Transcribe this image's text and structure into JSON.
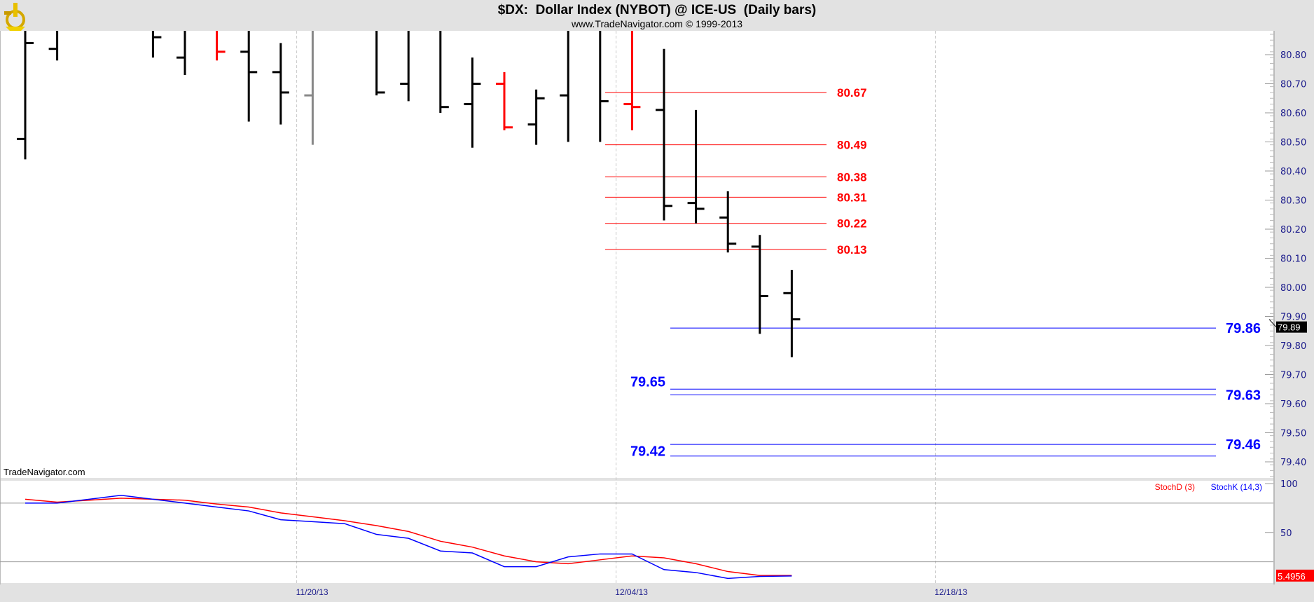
{
  "chart_data": {
    "type": "ohlc-bar",
    "title": "$DX:  Dollar Index (NYBOT) @ ICE-US  (Daily bars)",
    "subtitle": "www.TradeNavigator.com © 1999-2013",
    "watermark": "TradeNavigator.com",
    "ylim": [
      79.35,
      80.9
    ],
    "yticks": [
      "80.80",
      "80.70",
      "80.60",
      "80.50",
      "80.40",
      "80.30",
      "80.20",
      "80.10",
      "80.00",
      "79.90",
      "79.80",
      "79.70",
      "79.60",
      "79.50",
      "79.40"
    ],
    "xtick_labels": [
      {
        "label": "11/20/13",
        "date": "11/20/13"
      },
      {
        "label": "12/04/13",
        "date": "12/04/13"
      },
      {
        "label": "12/18/13",
        "date": "12/18/13"
      }
    ],
    "trading_days": [
      "11/07/13",
      "11/08/13",
      "11/11/13",
      "11/12/13",
      "11/13/13",
      "11/14/13",
      "11/15/13",
      "11/18/13",
      "11/19/13",
      "11/20/13",
      "11/21/13",
      "11/22/13",
      "11/25/13",
      "11/26/13",
      "11/27/13",
      "11/28/13",
      "11/29/13",
      "12/02/13",
      "12/03/13",
      "12/04/13",
      "12/05/13",
      "12/06/13",
      "12/09/13",
      "12/10/13",
      "12/11/13",
      "12/12/13",
      "12/13/13",
      "12/16/13",
      "12/17/13",
      "12/18/13",
      "12/19/13",
      "12/20/13",
      "12/23/13",
      "12/24/13",
      "12/26/13",
      "12/27/13",
      "12/30/13",
      "12/31/13",
      "01/02/14",
      "01/03/14"
    ],
    "bars": [
      {
        "date": "11/07/13",
        "o": 80.51,
        "h": 80.9,
        "l": 80.44,
        "c": 80.84,
        "color": "#000000"
      },
      {
        "date": "11/08/13",
        "o": 80.82,
        "h": 80.9,
        "l": 80.78,
        "c": null,
        "color": "#000000"
      },
      {
        "date": "11/13/13",
        "o": null,
        "h": 80.9,
        "l": 80.79,
        "c": 80.86,
        "color": "#000000"
      },
      {
        "date": "11/14/13",
        "o": 80.79,
        "h": 80.9,
        "l": 80.73,
        "c": null,
        "color": "#000000"
      },
      {
        "date": "11/15/13",
        "o": null,
        "h": 80.9,
        "l": 80.78,
        "c": 80.81,
        "color": "#ff0000"
      },
      {
        "date": "11/18/13",
        "o": 80.81,
        "h": 80.9,
        "l": 80.57,
        "c": 80.74,
        "color": "#000000"
      },
      {
        "date": "11/19/13",
        "o": 80.74,
        "h": 80.84,
        "l": 80.56,
        "c": 80.67,
        "color": "#000000"
      },
      {
        "date": "11/20/13",
        "o": 80.66,
        "h": 80.9,
        "l": 80.49,
        "c": null,
        "color": "#888888"
      },
      {
        "date": "11/22/13",
        "o": null,
        "h": 80.9,
        "l": 80.66,
        "c": 80.67,
        "color": "#000000"
      },
      {
        "date": "11/25/13",
        "o": 80.7,
        "h": 80.9,
        "l": 80.64,
        "c": null,
        "color": "#000000"
      },
      {
        "date": "11/26/13",
        "o": null,
        "h": 80.9,
        "l": 80.6,
        "c": 80.62,
        "color": "#000000"
      },
      {
        "date": "11/27/13",
        "o": 80.63,
        "h": 80.79,
        "l": 80.48,
        "c": 80.7,
        "color": "#000000"
      },
      {
        "date": "11/28/13",
        "o": 80.7,
        "h": 80.74,
        "l": 80.54,
        "c": 80.55,
        "color": "#ff0000"
      },
      {
        "date": "11/29/13",
        "o": 80.56,
        "h": 80.68,
        "l": 80.49,
        "c": 80.65,
        "color": "#000000"
      },
      {
        "date": "12/02/13",
        "o": 80.66,
        "h": 80.9,
        "l": 80.5,
        "c": null,
        "color": "#000000"
      },
      {
        "date": "12/03/13",
        "o": null,
        "h": 80.9,
        "l": 80.5,
        "c": 80.64,
        "color": "#000000"
      },
      {
        "date": "12/04/13",
        "o": 80.63,
        "h": 80.9,
        "l": 80.54,
        "c": 80.62,
        "color": "#ff0000"
      },
      {
        "date": "12/05/13",
        "o": 80.61,
        "h": 80.82,
        "l": 80.23,
        "c": 80.28,
        "color": "#000000"
      },
      {
        "date": "12/06/13",
        "o": 80.29,
        "h": 80.61,
        "l": 80.22,
        "c": 80.27,
        "color": "#000000"
      },
      {
        "date": "12/09/13",
        "o": 80.24,
        "h": 80.33,
        "l": 80.12,
        "c": 80.15,
        "color": "#000000"
      },
      {
        "date": "12/10/13",
        "o": 80.14,
        "h": 80.18,
        "l": 79.84,
        "c": 79.97,
        "color": "#000000"
      },
      {
        "date": "12/11/13",
        "o": 79.98,
        "h": 80.06,
        "l": 79.76,
        "c": 79.89,
        "color": "#000000"
      }
    ],
    "last_price": "79.89",
    "red_levels": [
      {
        "value": 80.67,
        "label": "80.67",
        "from": "12/03/13",
        "to": "12/09/13"
      },
      {
        "value": 80.49,
        "label": "80.49",
        "from": "12/03/13",
        "to": "12/09/13"
      },
      {
        "value": 80.38,
        "label": "80.38",
        "from": "12/03/13",
        "to": "12/09/13"
      },
      {
        "value": 80.31,
        "label": "80.31",
        "from": "12/03/13",
        "to": "12/09/13"
      },
      {
        "value": 80.22,
        "label": "80.22",
        "from": "12/03/13",
        "to": "12/09/13"
      },
      {
        "value": 80.13,
        "label": "80.13",
        "from": "12/03/13",
        "to": "12/09/13"
      }
    ],
    "blue_levels": [
      {
        "value": 79.86,
        "label": "79.86",
        "label_side": "right"
      },
      {
        "value": 79.65,
        "label": "79.65",
        "label_side": "left"
      },
      {
        "value": 79.63,
        "label": "79.63",
        "label_side": "right"
      },
      {
        "value": 79.46,
        "label": "79.46",
        "label_side": "right"
      },
      {
        "value": 79.42,
        "label": "79.42",
        "label_side": "left"
      }
    ],
    "stochastic": {
      "yticks": [
        "100",
        "50"
      ],
      "ylim": [
        0,
        100
      ],
      "bands": [
        80,
        20
      ],
      "series": [
        {
          "name": "StochD (3)",
          "color": "#ff0000",
          "dates": [
            "11/07/13",
            "11/08/13",
            "11/11/13",
            "11/12/13",
            "11/13/13",
            "11/14/13",
            "11/15/13",
            "11/18/13",
            "11/19/13",
            "11/20/13",
            "11/21/13",
            "11/22/13",
            "11/25/13",
            "11/26/13",
            "11/27/13",
            "11/28/13",
            "11/29/13",
            "12/02/13",
            "12/03/13",
            "12/04/13",
            "12/05/13",
            "12/06/13",
            "12/09/13",
            "12/10/13",
            "12/11/13"
          ],
          "values": [
            84,
            81,
            83,
            85,
            84,
            83,
            79,
            76,
            70,
            66,
            62,
            57,
            51,
            41,
            35,
            26,
            20,
            18,
            22,
            26,
            24,
            18,
            10,
            6,
            6
          ]
        },
        {
          "name": "StochK (14,3)",
          "color": "#0000ff",
          "dates": [
            "11/07/13",
            "11/08/13",
            "11/11/13",
            "11/12/13",
            "11/13/13",
            "11/14/13",
            "11/15/13",
            "11/18/13",
            "11/19/13",
            "11/20/13",
            "11/21/13",
            "11/22/13",
            "11/25/13",
            "11/26/13",
            "11/27/13",
            "11/28/13",
            "11/29/13",
            "12/02/13",
            "12/03/13",
            "12/04/13",
            "12/05/13",
            "12/06/13",
            "12/09/13",
            "12/10/13",
            "12/11/13"
          ],
          "values": [
            80,
            80,
            84,
            88,
            84,
            80,
            76,
            72,
            63,
            61,
            59,
            48,
            44,
            31,
            29,
            15,
            15,
            25,
            28,
            28,
            12,
            9,
            3,
            5,
            5.4956
          ]
        }
      ],
      "last_value": "5.4956"
    }
  }
}
